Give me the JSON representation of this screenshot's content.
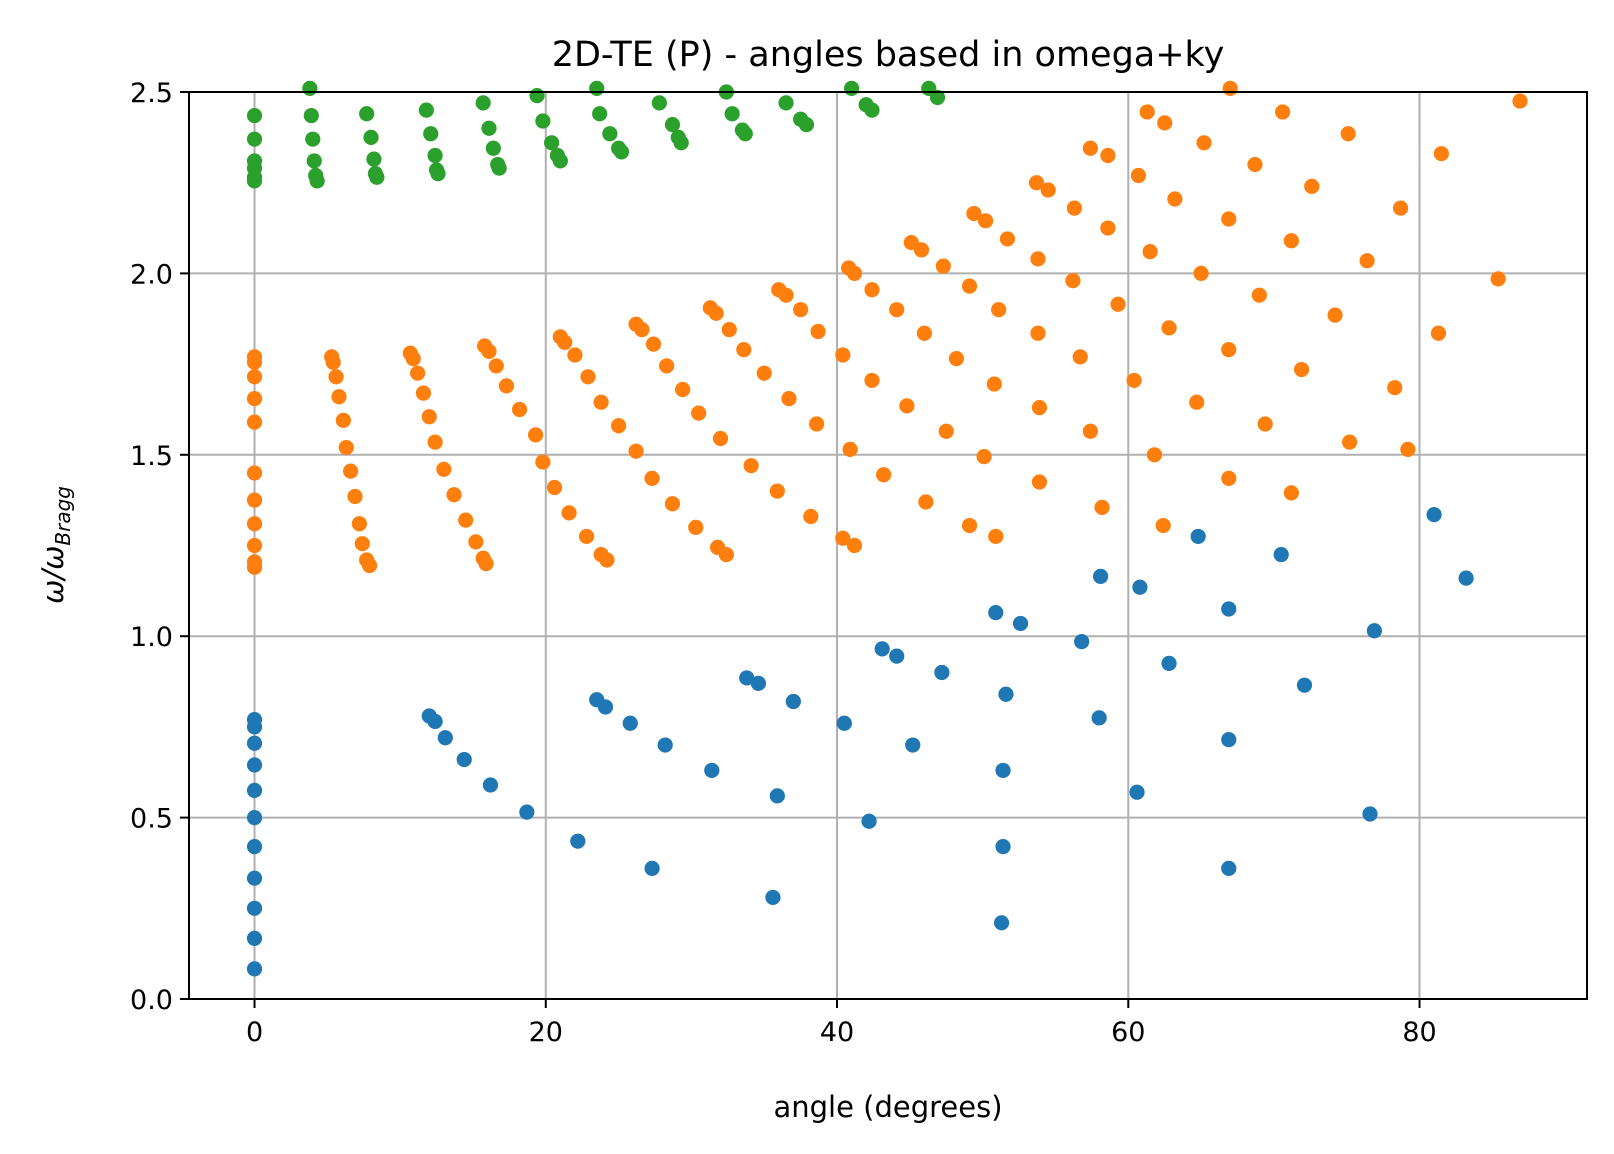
{
  "chart_data": {
    "type": "scatter",
    "title": "2D-TE (P) - angles based in omega+ky",
    "xlabel": "angle (degrees)",
    "ylabel_main": "ω/ω",
    "ylabel_sub": "Bragg",
    "xlim": [
      -4.5,
      91.5
    ],
    "ylim": [
      0.0,
      2.5
    ],
    "xticks": [
      0,
      20,
      40,
      60,
      80
    ],
    "xtick_labels": [
      "0",
      "20",
      "40",
      "60",
      "80"
    ],
    "yticks": [
      0.0,
      0.5,
      1.0,
      1.5,
      2.0,
      2.5
    ],
    "ytick_labels": [
      "0.0",
      "0.5",
      "1.0",
      "1.5",
      "2.0",
      "2.5"
    ],
    "grid": true,
    "series": [
      {
        "color": "#1f77b4",
        "points": [
          [
            0,
            0.083
          ],
          [
            0,
            0.167
          ],
          [
            0,
            0.25
          ],
          [
            0,
            0.333
          ],
          [
            0,
            0.42
          ],
          [
            0,
            0.5
          ],
          [
            0,
            0.575
          ],
          [
            0,
            0.645
          ],
          [
            0,
            0.705
          ],
          [
            0,
            0.75
          ],
          [
            0,
            0.77
          ],
          [
            12.0,
            0.78
          ],
          [
            12.4,
            0.765
          ],
          [
            13.1,
            0.72
          ],
          [
            14.4,
            0.66
          ],
          [
            16.2,
            0.59
          ],
          [
            18.7,
            0.515
          ],
          [
            22.2,
            0.435
          ],
          [
            27.3,
            0.36
          ],
          [
            35.6,
            0.28
          ],
          [
            23.5,
            0.825
          ],
          [
            24.1,
            0.805
          ],
          [
            25.8,
            0.76
          ],
          [
            28.2,
            0.7
          ],
          [
            31.4,
            0.63
          ],
          [
            35.9,
            0.56
          ],
          [
            42.2,
            0.49
          ],
          [
            51.3,
            0.21
          ],
          [
            33.8,
            0.885
          ],
          [
            34.6,
            0.87
          ],
          [
            37.0,
            0.82
          ],
          [
            40.5,
            0.76
          ],
          [
            45.2,
            0.7
          ],
          [
            51.4,
            0.63
          ],
          [
            51.4,
            0.42
          ],
          [
            43.1,
            0.965
          ],
          [
            44.1,
            0.945
          ],
          [
            47.2,
            0.9
          ],
          [
            51.6,
            0.84
          ],
          [
            58.0,
            0.775
          ],
          [
            60.6,
            0.57
          ],
          [
            66.9,
            0.36
          ],
          [
            50.9,
            1.065
          ],
          [
            52.6,
            1.035
          ],
          [
            56.8,
            0.985
          ],
          [
            62.8,
            0.925
          ],
          [
            66.9,
            0.715
          ],
          [
            76.6,
            0.51
          ],
          [
            58.1,
            1.165
          ],
          [
            60.8,
            1.135
          ],
          [
            66.9,
            1.075
          ],
          [
            72.1,
            0.865
          ],
          [
            64.8,
            1.275
          ],
          [
            70.5,
            1.225
          ],
          [
            76.9,
            1.015
          ],
          [
            81.0,
            1.335
          ],
          [
            83.2,
            1.16
          ]
        ]
      },
      {
        "color": "#ff7f0e",
        "points": [
          [
            0,
            1.19
          ],
          [
            0,
            1.205
          ],
          [
            0,
            1.25
          ],
          [
            0,
            1.31
          ],
          [
            0,
            1.375
          ],
          [
            0,
            1.45
          ],
          [
            0,
            1.59
          ],
          [
            0,
            1.655
          ],
          [
            0,
            1.715
          ],
          [
            0,
            1.755
          ],
          [
            0,
            1.77
          ],
          [
            5.3,
            1.77
          ],
          [
            5.4,
            1.755
          ],
          [
            5.6,
            1.715
          ],
          [
            5.8,
            1.66
          ],
          [
            6.1,
            1.595
          ],
          [
            6.3,
            1.52
          ],
          [
            6.6,
            1.455
          ],
          [
            6.9,
            1.385
          ],
          [
            7.2,
            1.31
          ],
          [
            7.4,
            1.255
          ],
          [
            7.7,
            1.21
          ],
          [
            7.9,
            1.195
          ],
          [
            10.7,
            1.78
          ],
          [
            10.9,
            1.765
          ],
          [
            11.2,
            1.725
          ],
          [
            11.6,
            1.67
          ],
          [
            12.0,
            1.605
          ],
          [
            12.4,
            1.535
          ],
          [
            13.0,
            1.46
          ],
          [
            13.7,
            1.39
          ],
          [
            14.5,
            1.32
          ],
          [
            15.2,
            1.26
          ],
          [
            15.7,
            1.215
          ],
          [
            15.9,
            1.2
          ],
          [
            15.8,
            1.8
          ],
          [
            16.1,
            1.785
          ],
          [
            16.6,
            1.745
          ],
          [
            17.3,
            1.69
          ],
          [
            18.2,
            1.625
          ],
          [
            19.3,
            1.555
          ],
          [
            19.8,
            1.48
          ],
          [
            20.6,
            1.41
          ],
          [
            21.6,
            1.34
          ],
          [
            22.8,
            1.275
          ],
          [
            23.8,
            1.225
          ],
          [
            24.2,
            1.21
          ],
          [
            21.0,
            1.825
          ],
          [
            21.3,
            1.81
          ],
          [
            22.0,
            1.775
          ],
          [
            22.9,
            1.715
          ],
          [
            23.8,
            1.645
          ],
          [
            25.0,
            1.58
          ],
          [
            26.2,
            1.51
          ],
          [
            27.3,
            1.435
          ],
          [
            28.7,
            1.365
          ],
          [
            30.3,
            1.3
          ],
          [
            31.8,
            1.245
          ],
          [
            32.4,
            1.225
          ],
          [
            26.2,
            1.86
          ],
          [
            26.6,
            1.845
          ],
          [
            27.4,
            1.805
          ],
          [
            28.3,
            1.745
          ],
          [
            29.4,
            1.68
          ],
          [
            30.5,
            1.615
          ],
          [
            32.0,
            1.545
          ],
          [
            34.1,
            1.47
          ],
          [
            35.9,
            1.4
          ],
          [
            38.2,
            1.33
          ],
          [
            40.4,
            1.27
          ],
          [
            41.2,
            1.25
          ],
          [
            31.3,
            1.905
          ],
          [
            31.7,
            1.89
          ],
          [
            32.6,
            1.845
          ],
          [
            33.6,
            1.79
          ],
          [
            35.0,
            1.725
          ],
          [
            36.7,
            1.655
          ],
          [
            38.6,
            1.585
          ],
          [
            40.9,
            1.515
          ],
          [
            43.2,
            1.445
          ],
          [
            46.1,
            1.37
          ],
          [
            49.1,
            1.305
          ],
          [
            50.9,
            1.275
          ],
          [
            36.0,
            1.955
          ],
          [
            36.5,
            1.94
          ],
          [
            37.5,
            1.9
          ],
          [
            38.7,
            1.84
          ],
          [
            40.4,
            1.775
          ],
          [
            42.4,
            1.705
          ],
          [
            44.8,
            1.635
          ],
          [
            47.5,
            1.565
          ],
          [
            50.1,
            1.495
          ],
          [
            53.9,
            1.425
          ],
          [
            58.2,
            1.355
          ],
          [
            62.4,
            1.305
          ],
          [
            40.8,
            2.015
          ],
          [
            41.2,
            2.0
          ],
          [
            42.4,
            1.955
          ],
          [
            44.1,
            1.9
          ],
          [
            46.0,
            1.835
          ],
          [
            48.2,
            1.765
          ],
          [
            50.8,
            1.695
          ],
          [
            53.9,
            1.63
          ],
          [
            57.4,
            1.565
          ],
          [
            61.8,
            1.5
          ],
          [
            66.9,
            1.435
          ],
          [
            71.2,
            1.395
          ],
          [
            45.1,
            2.085
          ],
          [
            45.8,
            2.065
          ],
          [
            47.3,
            2.02
          ],
          [
            49.1,
            1.965
          ],
          [
            51.1,
            1.9
          ],
          [
            53.8,
            1.835
          ],
          [
            56.7,
            1.77
          ],
          [
            60.4,
            1.705
          ],
          [
            64.7,
            1.645
          ],
          [
            69.4,
            1.585
          ],
          [
            75.2,
            1.535
          ],
          [
            79.2,
            1.515
          ],
          [
            49.4,
            2.165
          ],
          [
            50.2,
            2.145
          ],
          [
            51.7,
            2.095
          ],
          [
            53.8,
            2.04
          ],
          [
            56.2,
            1.98
          ],
          [
            59.3,
            1.915
          ],
          [
            62.8,
            1.85
          ],
          [
            66.9,
            1.79
          ],
          [
            71.9,
            1.735
          ],
          [
            78.3,
            1.685
          ],
          [
            53.7,
            2.25
          ],
          [
            54.5,
            2.23
          ],
          [
            56.3,
            2.18
          ],
          [
            58.6,
            2.125
          ],
          [
            61.5,
            2.06
          ],
          [
            65.0,
            2.0
          ],
          [
            69.0,
            1.94
          ],
          [
            74.2,
            1.885
          ],
          [
            81.3,
            1.835
          ],
          [
            57.4,
            2.345
          ],
          [
            58.6,
            2.325
          ],
          [
            60.7,
            2.27
          ],
          [
            63.2,
            2.205
          ],
          [
            66.9,
            2.15
          ],
          [
            71.2,
            2.09
          ],
          [
            76.4,
            2.035
          ],
          [
            85.4,
            1.985
          ],
          [
            61.3,
            2.445
          ],
          [
            62.5,
            2.415
          ],
          [
            65.2,
            2.36
          ],
          [
            68.7,
            2.3
          ],
          [
            72.6,
            2.24
          ],
          [
            78.7,
            2.18
          ],
          [
            67.0,
            2.51
          ],
          [
            70.6,
            2.445
          ],
          [
            75.1,
            2.385
          ],
          [
            81.5,
            2.33
          ],
          [
            86.9,
            2.475
          ]
        ]
      },
      {
        "color": "#2ca02c",
        "points": [
          [
            0,
            2.255
          ],
          [
            0,
            2.265
          ],
          [
            0,
            2.29
          ],
          [
            0,
            2.31
          ],
          [
            0,
            2.37
          ],
          [
            0,
            2.435
          ],
          [
            3.8,
            2.51
          ],
          [
            3.9,
            2.435
          ],
          [
            4.0,
            2.37
          ],
          [
            4.1,
            2.31
          ],
          [
            4.2,
            2.27
          ],
          [
            4.3,
            2.255
          ],
          [
            7.7,
            2.44
          ],
          [
            8.0,
            2.375
          ],
          [
            8.2,
            2.315
          ],
          [
            8.3,
            2.275
          ],
          [
            8.4,
            2.265
          ],
          [
            11.8,
            2.45
          ],
          [
            12.1,
            2.385
          ],
          [
            12.4,
            2.325
          ],
          [
            12.5,
            2.285
          ],
          [
            12.6,
            2.275
          ],
          [
            15.7,
            2.47
          ],
          [
            16.1,
            2.4
          ],
          [
            16.4,
            2.345
          ],
          [
            16.7,
            2.3
          ],
          [
            16.8,
            2.29
          ],
          [
            19.4,
            2.49
          ],
          [
            19.8,
            2.42
          ],
          [
            20.4,
            2.36
          ],
          [
            20.8,
            2.325
          ],
          [
            21.0,
            2.31
          ],
          [
            23.5,
            2.51
          ],
          [
            23.7,
            2.44
          ],
          [
            24.4,
            2.385
          ],
          [
            25.0,
            2.345
          ],
          [
            25.2,
            2.335
          ],
          [
            27.8,
            2.47
          ],
          [
            28.7,
            2.41
          ],
          [
            29.1,
            2.375
          ],
          [
            29.3,
            2.36
          ],
          [
            32.4,
            2.5
          ],
          [
            32.8,
            2.44
          ],
          [
            33.5,
            2.395
          ],
          [
            33.7,
            2.385
          ],
          [
            36.5,
            2.47
          ],
          [
            37.5,
            2.425
          ],
          [
            37.9,
            2.41
          ],
          [
            41.0,
            2.51
          ],
          [
            42.0,
            2.465
          ],
          [
            42.4,
            2.45
          ],
          [
            46.3,
            2.51
          ],
          [
            46.9,
            2.485
          ]
        ]
      }
    ]
  }
}
